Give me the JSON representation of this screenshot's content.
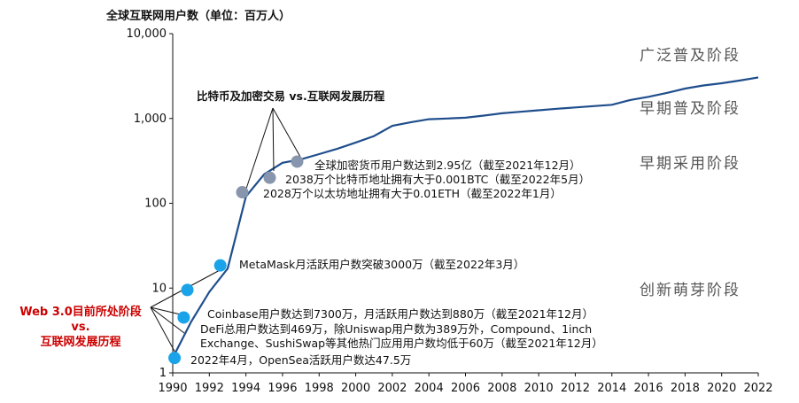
{
  "chart_data": {
    "type": "line",
    "title": "全球互联网用户数（单位：百万人）",
    "yscale": "log",
    "ylim": [
      1,
      10000
    ],
    "xlim": [
      1990,
      2022
    ],
    "xticks": [
      "1990",
      "1992",
      "1994",
      "1996",
      "1998",
      "2000",
      "2002",
      "2004",
      "2006",
      "2008",
      "2010",
      "2012",
      "2014",
      "2016",
      "2018",
      "2020",
      "2022"
    ],
    "yticks": [
      "1",
      "10",
      "100",
      "1,000",
      "10,000"
    ],
    "series": [
      {
        "x": [
          1990,
          1991,
          1992,
          1993,
          1994,
          1995,
          1996,
          1997,
          1998,
          1999,
          2000,
          2001,
          2002,
          2003,
          2004,
          2005,
          2006,
          2007,
          2008,
          2009,
          2010,
          2011,
          2012,
          2013,
          2014,
          2015,
          2016,
          2017,
          2018,
          2019,
          2020,
          2021,
          2022
        ],
        "y": [
          1.5,
          4,
          9,
          17,
          120,
          220,
          300,
          330,
          380,
          440,
          520,
          620,
          820,
          900,
          980,
          1000,
          1020,
          1080,
          1150,
          1200,
          1250,
          1300,
          1350,
          1400,
          1450,
          1650,
          1800,
          2000,
          2250,
          2450,
          2600,
          2800,
          3050
        ],
        "color": "#1f4e8c"
      }
    ],
    "points": [
      {
        "x": 1990.1,
        "y": 1.5,
        "color": "#1aa3e8"
      },
      {
        "x": 1990.6,
        "y": 4.5,
        "color": "#1aa3e8"
      },
      {
        "x": 1990.8,
        "y": 9.5,
        "color": "#1aa3e8"
      },
      {
        "x": 1992.6,
        "y": 18.5,
        "color": "#1aa3e8"
      },
      {
        "x": 1993.8,
        "y": 135,
        "color": "#8795ad"
      },
      {
        "x": 1995.3,
        "y": 200,
        "color": "#8795ad"
      },
      {
        "x": 1996.8,
        "y": 310,
        "color": "#8795ad"
      }
    ],
    "stages": [
      "广泛普及阶段",
      "早期普及阶段",
      "早期采用阶段",
      "创新萌芽阶段"
    ],
    "header_annotation": "比特币及加密交易 vs.互联网发展历程",
    "annotations": [
      "全球加密货币用户数达到2.95亿（截至2021年12月）",
      "2038万个比特币地址拥有大于0.001BTC（截至2022年5月）",
      "2028万个以太坊地址拥有大于0.01ETH（截至2022年1月）",
      "MetaMask月活跃用户数突破3000万（截至2022年3月）",
      "Coinbase用户数达到7300万，月活跃用户数达到880万（截至2021年12月）",
      "DeFi总用户数达到469万，除Uniswap用户数为389万外，Compound、1inch",
      "Exchange、SushiSwap等其他热门应用用户数均低于60万（截至2021年12月）",
      "2022年4月，OpenSea活跃用户数达47.5万"
    ],
    "web3_label": [
      "Web 3.0目前所处阶段",
      "vs.",
      "互联网发展历程"
    ]
  }
}
